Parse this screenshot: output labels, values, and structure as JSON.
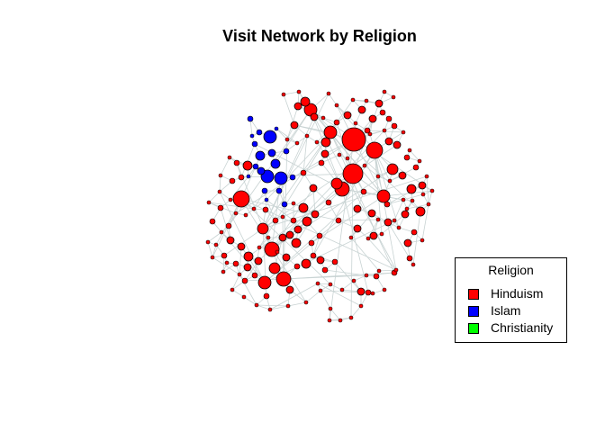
{
  "title": "Visit Network by Religion",
  "legend": {
    "title": "Religion",
    "items": [
      {
        "label": "Hinduism",
        "color": "#ff0000"
      },
      {
        "label": "Islam",
        "color": "#0000ff"
      },
      {
        "label": "Christianity",
        "color": "#00ff00"
      }
    ]
  },
  "colors": {
    "edge": "#c8d3d3",
    "node_border": "#000000"
  }
}
